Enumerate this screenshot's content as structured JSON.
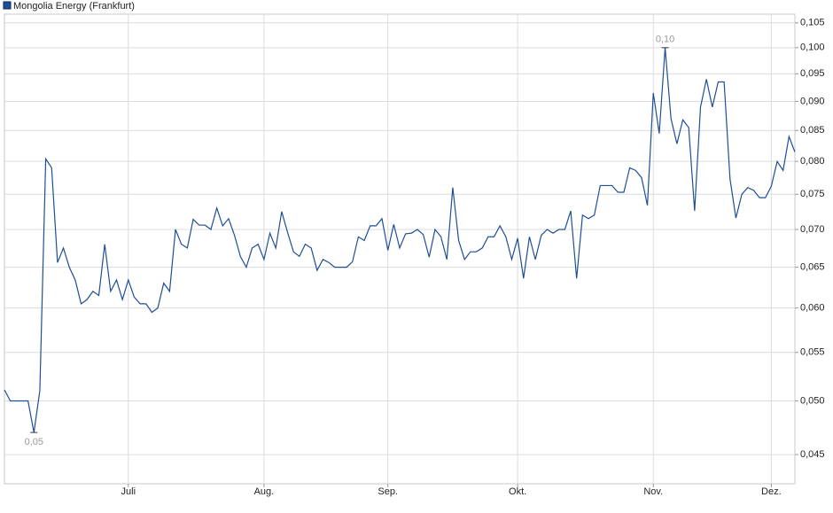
{
  "chart_data": {
    "type": "line",
    "log_y": true,
    "grid": true,
    "categories": [
      null,
      null,
      null,
      null,
      null,
      null,
      null,
      null,
      null,
      null,
      null,
      null,
      null,
      null,
      null,
      null,
      null,
      null,
      null,
      null,
      null,
      "Juli",
      null,
      null,
      null,
      null,
      null,
      null,
      null,
      null,
      null,
      null,
      null,
      null,
      null,
      null,
      null,
      null,
      null,
      null,
      null,
      null,
      null,
      null,
      "Aug.",
      null,
      null,
      null,
      null,
      null,
      null,
      null,
      null,
      null,
      null,
      null,
      null,
      null,
      null,
      null,
      null,
      null,
      null,
      null,
      null,
      "Sep.",
      null,
      null,
      null,
      null,
      null,
      null,
      null,
      null,
      null,
      null,
      null,
      null,
      null,
      null,
      null,
      null,
      null,
      null,
      null,
      null,
      null,
      "Okt.",
      null,
      null,
      null,
      null,
      null,
      null,
      null,
      null,
      null,
      null,
      null,
      null,
      null,
      null,
      null,
      null,
      null,
      null,
      null,
      null,
      null,
      null,
      "Nov.",
      null,
      null,
      null,
      null,
      null,
      null,
      null,
      null,
      null,
      null,
      null,
      null,
      null,
      null,
      null,
      null,
      null,
      null,
      null,
      "Dez.",
      null,
      null,
      null,
      null
    ],
    "series": [
      {
        "name": "Mongolia Energy (Frankfurt)",
        "color": "#1f4e96",
        "values": [
          0.0511,
          0.05,
          0.05,
          0.05,
          0.05,
          0.047,
          0.051,
          0.0804,
          0.079,
          0.0656,
          0.0675,
          0.065,
          0.0634,
          0.0605,
          0.061,
          0.062,
          0.0615,
          0.068,
          0.062,
          0.0634,
          0.061,
          0.0634,
          0.0613,
          0.0605,
          0.0605,
          0.0595,
          0.06,
          0.063,
          0.062,
          0.07,
          0.068,
          0.0675,
          0.0714,
          0.0706,
          0.0706,
          0.07,
          0.073,
          0.0705,
          0.0715,
          0.0692,
          0.0664,
          0.065,
          0.0675,
          0.068,
          0.066,
          0.0695,
          0.0675,
          0.0725,
          0.0696,
          0.067,
          0.0664,
          0.068,
          0.0675,
          0.0646,
          0.066,
          0.0656,
          0.065,
          0.065,
          0.065,
          0.0657,
          0.069,
          0.0685,
          0.0705,
          0.0705,
          0.0715,
          0.0672,
          0.0707,
          0.0675,
          0.0694,
          0.0695,
          0.07,
          0.0693,
          0.0663,
          0.07,
          0.069,
          0.066,
          0.076,
          0.0685,
          0.066,
          0.067,
          0.067,
          0.0675,
          0.069,
          0.069,
          0.0705,
          0.069,
          0.066,
          0.0688,
          0.0636,
          0.069,
          0.066,
          0.0692,
          0.07,
          0.0695,
          0.07,
          0.07,
          0.0726,
          0.0636,
          0.072,
          0.0715,
          0.072,
          0.0763,
          0.0763,
          0.0763,
          0.0753,
          0.0753,
          0.079,
          0.0786,
          0.0775,
          0.0734,
          0.0915,
          0.0845,
          0.1,
          0.087,
          0.0828,
          0.0868,
          0.0855,
          0.0726,
          0.089,
          0.094,
          0.089,
          0.0935,
          0.0935,
          0.0773,
          0.0716,
          0.075,
          0.076,
          0.0756,
          0.0745,
          0.0745,
          0.0762,
          0.08,
          0.0786,
          0.084,
          0.0815
        ]
      }
    ],
    "max_label": "0,10",
    "min_label": "0,05",
    "ylim": [
      0.0425,
      0.1068
    ],
    "yticks": [
      {
        "value": 0.045,
        "label": "0,045"
      },
      {
        "value": 0.05,
        "label": "0,050"
      },
      {
        "value": 0.055,
        "label": "0,055"
      },
      {
        "value": 0.06,
        "label": "0,060"
      },
      {
        "value": 0.065,
        "label": "0,065"
      },
      {
        "value": 0.07,
        "label": "0,070"
      },
      {
        "value": 0.075,
        "label": "0,075"
      },
      {
        "value": 0.08,
        "label": "0,080"
      },
      {
        "value": 0.085,
        "label": "0,085"
      },
      {
        "value": 0.09,
        "label": "0,090"
      },
      {
        "value": 0.095,
        "label": "0,095"
      },
      {
        "value": 0.1,
        "label": "0,100"
      },
      {
        "value": 0.105,
        "label": "0,105"
      }
    ]
  }
}
